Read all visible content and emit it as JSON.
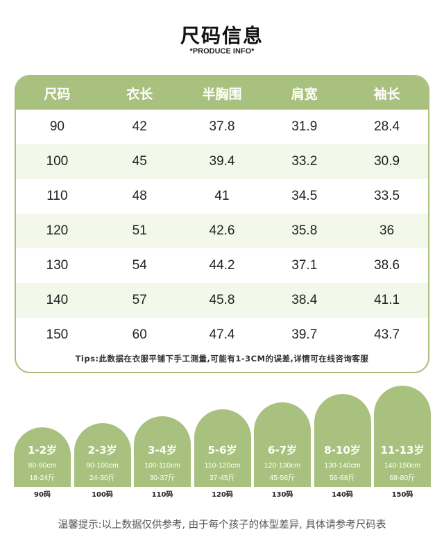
{
  "header": {
    "title": "尺码信息",
    "subtitle": "*PRODUCE INFO*"
  },
  "table": {
    "columns": [
      "尺码",
      "衣长",
      "半胸围",
      "肩宽",
      "袖长"
    ],
    "rows": [
      [
        "90",
        "42",
        "37.8",
        "31.9",
        "28.4"
      ],
      [
        "100",
        "45",
        "39.4",
        "33.2",
        "30.9"
      ],
      [
        "110",
        "48",
        "41",
        "34.5",
        "33.5"
      ],
      [
        "120",
        "51",
        "42.6",
        "35.8",
        "36"
      ],
      [
        "130",
        "54",
        "44.2",
        "37.1",
        "38.6"
      ],
      [
        "140",
        "57",
        "45.8",
        "38.4",
        "41.1"
      ],
      [
        "150",
        "60",
        "47.4",
        "39.7",
        "43.7"
      ]
    ],
    "tips": "Tips:此数据在衣服平铺下手工测量,可能有1-3CM的误差,详情可在线咨询客服"
  },
  "size_guide": [
    {
      "age": "1-2岁",
      "height": "80-90cm",
      "weight": "18-24斤",
      "size": "90码"
    },
    {
      "age": "2-3岁",
      "height": "90-100cm",
      "weight": "24-30斤",
      "size": "100码"
    },
    {
      "age": "3-4岁",
      "height": "100-110cm",
      "weight": "30-37斤",
      "size": "110码"
    },
    {
      "age": "5-6岁",
      "height": "110-120cm",
      "weight": "37-45斤",
      "size": "120码"
    },
    {
      "age": "6-7岁",
      "height": "120-130cm",
      "weight": "45-56斤",
      "size": "130码"
    },
    {
      "age": "8-10岁",
      "height": "130-140cm",
      "weight": "56-68斤",
      "size": "140码"
    },
    {
      "age": "11-13岁",
      "height": "140-150cm",
      "weight": "68-80斤",
      "size": "150码"
    }
  ],
  "footer": {
    "note": "温馨提示:以上数据仅供参考, 由于每个孩子的体型差异, 具体请参考尺码表"
  },
  "colors": {
    "accent": "#a8c17e",
    "row_alt": "#f3f8ea"
  }
}
